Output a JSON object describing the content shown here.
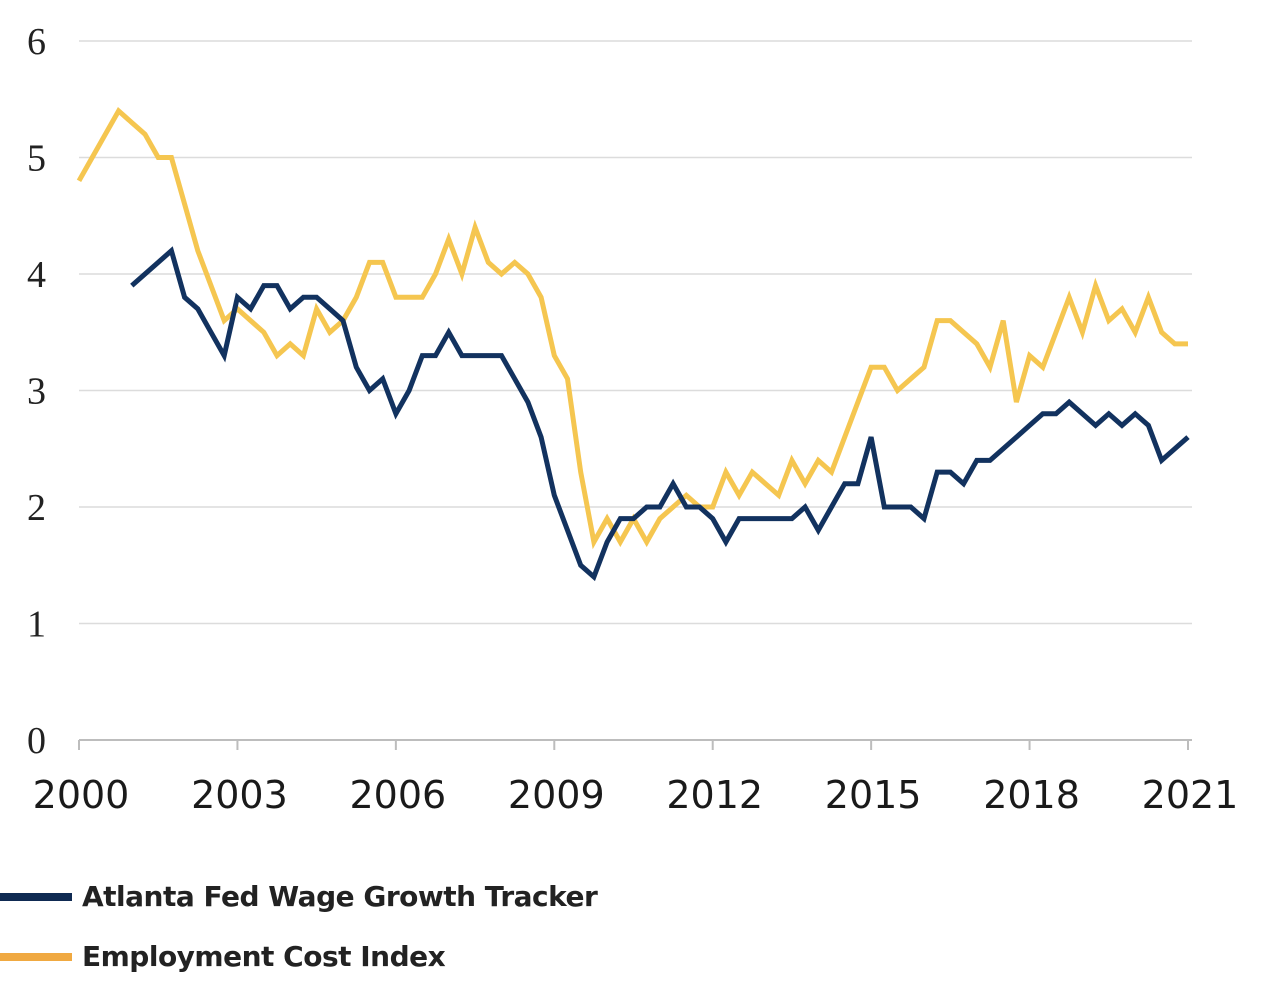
{
  "chart_data": {
    "type": "line",
    "title": "",
    "xlabel": "",
    "ylabel": "",
    "ylim": [
      0,
      6
    ],
    "xlim": [
      2000,
      2021
    ],
    "yticks": [
      "0",
      "1",
      "2",
      "3",
      "4",
      "5",
      "6"
    ],
    "xticks": [
      "2000",
      "2003",
      "2006",
      "2009",
      "2012",
      "2015",
      "2018",
      "2021"
    ],
    "grid": true,
    "legend_position": "bottom-left",
    "x_frequency": "quarterly",
    "x_start": 2000.0,
    "series": [
      {
        "name": "Atlanta Fed Wage Growth Tracker",
        "color": "#12325f",
        "legend_color": "#0f2a52",
        "start_index": 4,
        "values": [
          3.9,
          4.0,
          4.1,
          4.2,
          3.8,
          3.7,
          3.5,
          3.3,
          3.8,
          3.7,
          3.9,
          3.9,
          3.7,
          3.8,
          3.8,
          3.7,
          3.6,
          3.2,
          3.0,
          3.1,
          2.8,
          3.0,
          3.3,
          3.3,
          3.5,
          3.3,
          3.3,
          3.3,
          3.3,
          3.1,
          2.9,
          2.6,
          2.1,
          1.8,
          1.5,
          1.4,
          1.7,
          1.9,
          1.9,
          2.0,
          2.0,
          2.2,
          2.0,
          2.0,
          1.9,
          1.7,
          1.9,
          1.9,
          1.9,
          1.9,
          1.9,
          2.0,
          1.8,
          2.0,
          2.2,
          2.2,
          2.6,
          2.0,
          2.0,
          2.0,
          1.9,
          2.3,
          2.3,
          2.2,
          2.4,
          2.4,
          2.5,
          2.6,
          2.7,
          2.8,
          2.8,
          2.9,
          2.8,
          2.7,
          2.8,
          2.7,
          2.8,
          2.7,
          2.4,
          2.5,
          2.6
        ]
      },
      {
        "name": "Employment Cost Index",
        "color": "#f5c650",
        "legend_color": "#f0a941",
        "start_index": 0,
        "values": [
          4.8,
          5.0,
          5.2,
          5.4,
          5.3,
          5.2,
          5.0,
          5.0,
          4.6,
          4.2,
          3.9,
          3.6,
          3.7,
          3.6,
          3.5,
          3.3,
          3.4,
          3.3,
          3.7,
          3.5,
          3.6,
          3.8,
          4.1,
          4.1,
          3.8,
          3.8,
          3.8,
          4.0,
          4.3,
          4.0,
          4.4,
          4.1,
          4.0,
          4.1,
          4.0,
          3.8,
          3.3,
          3.1,
          2.3,
          1.7,
          1.9,
          1.7,
          1.9,
          1.7,
          1.9,
          2.0,
          2.1,
          2.0,
          2.0,
          2.3,
          2.1,
          2.3,
          2.2,
          2.1,
          2.4,
          2.2,
          2.4,
          2.3,
          2.6,
          2.9,
          3.2,
          3.2,
          3.0,
          3.1,
          3.2,
          3.6,
          3.6,
          3.5,
          3.4,
          3.2,
          3.6,
          2.9,
          3.3,
          3.2,
          3.5,
          3.8,
          3.5,
          3.9,
          3.6,
          3.7,
          3.5,
          3.8,
          3.5,
          3.4,
          3.4
        ]
      }
    ]
  }
}
